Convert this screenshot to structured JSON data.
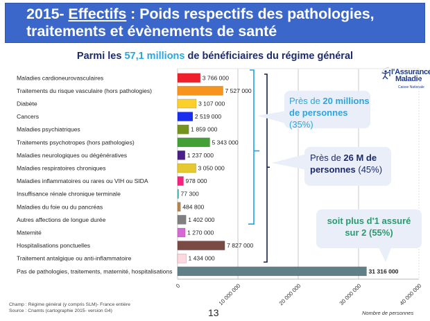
{
  "header": {
    "title_prefix": "2015- ",
    "title_underlined": "Effectifs",
    "title_rest_line1": " : Poids respectifs des pathologies,",
    "title_line2": "traitements et évènements de santé"
  },
  "subtitle": {
    "before": "Parmi les ",
    "highlight": "57,1 millions",
    "after": " de bénéficiaires du régime général"
  },
  "logo": {
    "line1": "l'Assurance",
    "line2": "Maladie",
    "line3": "Caisse Nationale"
  },
  "callouts": [
    {
      "prefix": "Près de ",
      "bold": "20 millions",
      "line2_bold": "de personnes",
      "suffix": " (35%)"
    },
    {
      "prefix": "Près de ",
      "bold": "26 M de",
      "line2_bold": "personnes",
      "suffix": " (45%)"
    },
    {
      "line1": "soit plus d'1 assuré",
      "line2": "sur 2 (55%)"
    }
  ],
  "footer": {
    "champ": "Champ : Régime général (y compris SLM)- France entière",
    "source": "Source : Cnamts (cartographie 2015- version G4)",
    "page_number": "13"
  },
  "chart_data": {
    "type": "bar",
    "orientation": "horizontal",
    "title": "Parmi les 57,1 millions de bénéficiaires du régime général",
    "xlabel": "Nombre de personnes",
    "ylabel": "",
    "xlim": [
      0,
      40000000
    ],
    "xticks": [
      0,
      10000000,
      20000000,
      30000000,
      40000000
    ],
    "xtick_labels": [
      "0",
      "10 000 000",
      "20 000 000",
      "30 000 000",
      "40 000 000"
    ],
    "grid": true,
    "categories": [
      "Maladies cardioneurovasculaires",
      "Traitements du risque vasculaire (hors pathologies)",
      "Diabète",
      "Cancers",
      "Maladies psychiatriques",
      "Traitements psychotropes (hors pathologies)",
      "Maladies neurologiques ou dégénératives",
      "Maladies respiratoires chroniques",
      "Maladies inflammatoires ou rares ou VIH ou SIDA",
      "Insuffisance rénale chronique terminale",
      "Maladies du foie ou du pancréas",
      "Autres affections de longue durée",
      "Maternité",
      "Hospitalisations ponctuelles",
      "Traitement antalgique ou anti-inflammatoire",
      "Pas de pathologies, traitements, maternité, hospitalisations"
    ],
    "values": [
      3766000,
      7527000,
      3107000,
      2519000,
      1859000,
      5343000,
      1237000,
      3050000,
      978000,
      77300,
      484800,
      1402000,
      1270000,
      7827000,
      1434000,
      31316000
    ],
    "value_labels": [
      "3 766 000",
      "7 527 000",
      "3 107 000",
      "2 519 000",
      "1 859 000",
      "5 343 000",
      "1 237 000",
      "3 050 000",
      "978 000",
      "77 300",
      "484 800",
      "1 402 000",
      "1 270 000",
      "7 827 000",
      "1 434 000",
      "31 316 000"
    ],
    "colors": [
      "#f0202a",
      "#f7941d",
      "#fcd02a",
      "#1a2ef0",
      "#76931f",
      "#43a035",
      "#4a1f8a",
      "#e6c830",
      "#f5237f",
      "#3cbcc0",
      "#b5874a",
      "#808080",
      "#d56ad4",
      "#7a4a45",
      "#fcd9de",
      "#607f86"
    ],
    "value_label_bold": [
      false,
      false,
      false,
      false,
      false,
      false,
      false,
      false,
      false,
      false,
      false,
      false,
      false,
      false,
      false,
      true
    ]
  }
}
